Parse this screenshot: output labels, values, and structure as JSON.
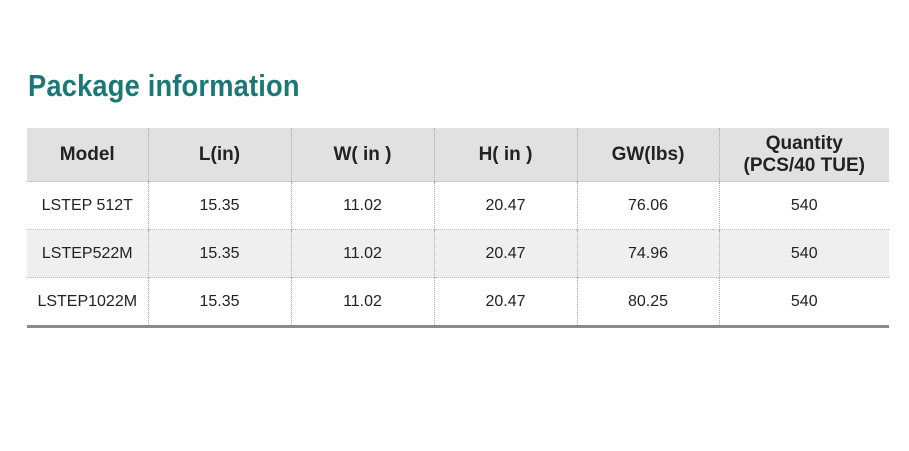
{
  "title": "Package information",
  "table": {
    "header": [
      "Model",
      "L(in)",
      "W( in )",
      "H( in )",
      "GW(lbs)",
      "Quantity (PCS/40 TUE)"
    ],
    "rows": [
      [
        "LSTEP 512T",
        "15.35",
        "11.02",
        "20.47",
        "76.06",
        "540"
      ],
      [
        "LSTEP522M",
        "15.35",
        "11.02",
        "20.47",
        "74.96",
        "540"
      ],
      [
        "LSTEP1022M",
        "15.35",
        "11.02",
        "20.47",
        "80.25",
        "540"
      ]
    ]
  }
}
